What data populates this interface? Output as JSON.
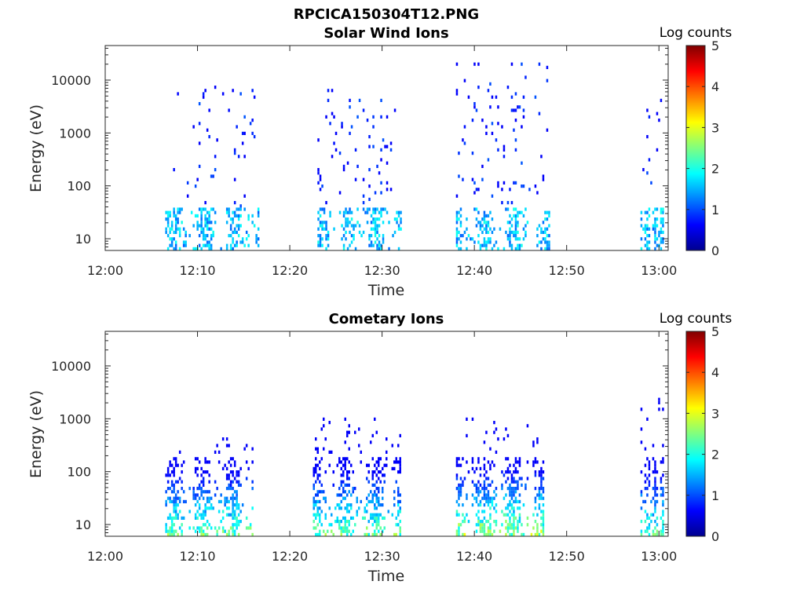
{
  "figure": {
    "title": "RPCICA150304T12.PNG"
  },
  "colorbar": {
    "title": "Log counts",
    "ticks": [
      "0",
      "1",
      "2",
      "3",
      "4",
      "5"
    ],
    "range": [
      0,
      5
    ],
    "colormap": "jet"
  },
  "chart_data": [
    {
      "type": "heatmap",
      "title": "Solar Wind Ions",
      "xlabel": "Time",
      "ylabel": "Energy (eV)",
      "yscale": "log",
      "xlim": [
        "12:00",
        "13:01"
      ],
      "ylim": [
        6,
        45000
      ],
      "xticks": [
        "12:00",
        "12:10",
        "12:20",
        "12:30",
        "12:40",
        "12:50",
        "13:00"
      ],
      "yticks": [
        "10",
        "100",
        "1000",
        "10000"
      ],
      "colorbar_label": "Log counts",
      "clim": [
        0,
        5
      ],
      "bursts": [
        {
          "start": "12:06.5",
          "end": "12:16.5",
          "peak_log_counts": 2.0,
          "energy_range_eV": [
            6,
            9000
          ]
        },
        {
          "start": "12:23.0",
          "end": "12:32.0",
          "peak_log_counts": 2.0,
          "energy_range_eV": [
            6,
            9000
          ]
        },
        {
          "start": "12:38.0",
          "end": "12:48.0",
          "peak_log_counts": 2.0,
          "energy_range_eV": [
            6,
            23000
          ]
        },
        {
          "start": "12:58.0",
          "end": "13:00.5",
          "peak_log_counts": 2.0,
          "energy_range_eV": [
            6,
            4500
          ]
        }
      ]
    },
    {
      "type": "heatmap",
      "title": "Cometary Ions",
      "xlabel": "Time",
      "ylabel": "Energy (eV)",
      "yscale": "log",
      "xlim": [
        "12:00",
        "13:01"
      ],
      "ylim": [
        6,
        45000
      ],
      "xticks": [
        "12:00",
        "12:10",
        "12:20",
        "12:30",
        "12:40",
        "12:50",
        "13:00"
      ],
      "yticks": [
        "10",
        "100",
        "1000",
        "10000"
      ],
      "colorbar_label": "Log counts",
      "clim": [
        0,
        5
      ],
      "bursts": [
        {
          "start": "12:06.5",
          "end": "12:16.0",
          "peak_log_counts": 3.0,
          "energy_range_eV": [
            6,
            500
          ]
        },
        {
          "start": "12:22.5",
          "end": "12:32.0",
          "peak_log_counts": 3.0,
          "energy_range_eV": [
            6,
            1200
          ]
        },
        {
          "start": "12:38.0",
          "end": "12:47.5",
          "peak_log_counts": 3.3,
          "energy_range_eV": [
            6,
            1200
          ]
        },
        {
          "start": "12:58.0",
          "end": "13:00.5",
          "peak_log_counts": 2.8,
          "energy_range_eV": [
            6,
            2600
          ]
        }
      ]
    }
  ]
}
